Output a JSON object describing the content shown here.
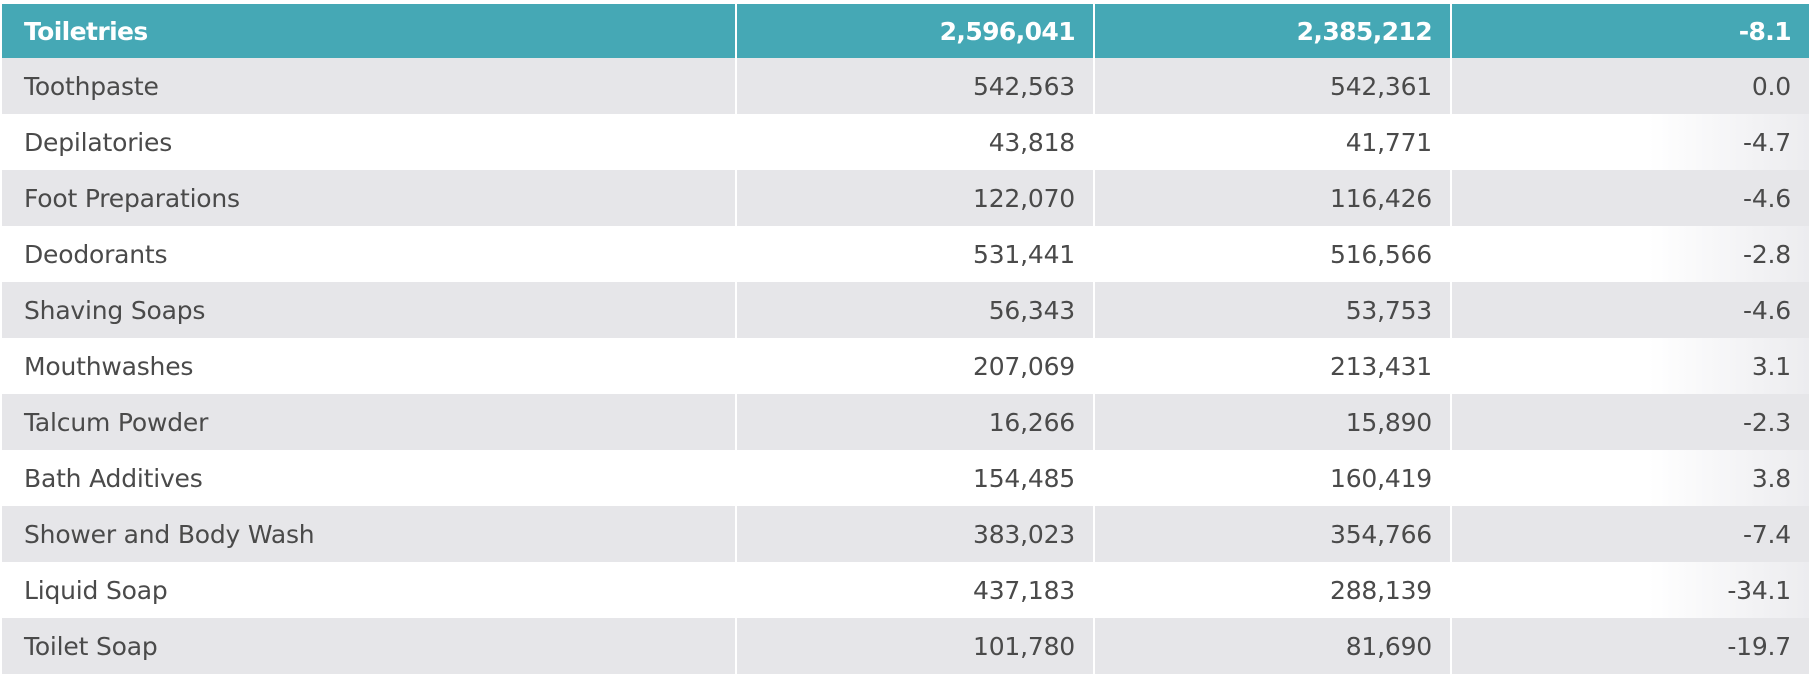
{
  "table": {
    "header": {
      "category": "Toiletries",
      "value_a": "2,596,041",
      "value_b": "2,385,212",
      "change": "-8.1"
    },
    "rows": [
      {
        "category": "Toothpaste",
        "value_a": "542,563",
        "value_b": "542,361",
        "change": "0.0"
      },
      {
        "category": "Depilatories",
        "value_a": "43,818",
        "value_b": "41,771",
        "change": "-4.7"
      },
      {
        "category": "Foot Preparations",
        "value_a": "122,070",
        "value_b": "116,426",
        "change": "-4.6"
      },
      {
        "category": "Deodorants",
        "value_a": "531,441",
        "value_b": "516,566",
        "change": "-2.8"
      },
      {
        "category": "Shaving Soaps",
        "value_a": "56,343",
        "value_b": "53,753",
        "change": "-4.6"
      },
      {
        "category": "Mouthwashes",
        "value_a": "207,069",
        "value_b": "213,431",
        "change": "3.1"
      },
      {
        "category": "Talcum Powder",
        "value_a": "16,266",
        "value_b": "15,890",
        "change": "-2.3"
      },
      {
        "category": "Bath Additives",
        "value_a": "154,485",
        "value_b": "160,419",
        "change": "3.8"
      },
      {
        "category": "Shower and Body Wash",
        "value_a": "383,023",
        "value_b": "354,766",
        "change": "-7.4"
      },
      {
        "category": "Liquid Soap",
        "value_a": "437,183",
        "value_b": "288,139",
        "change": "-34.1"
      },
      {
        "category": "Toilet Soap",
        "value_a": "101,780",
        "value_b": "81,690",
        "change": "-19.7"
      }
    ]
  },
  "colors": {
    "header_bg": "#45a8b5",
    "shaded_row_bg": "#e6e6e9",
    "text": "#4a4a4a"
  }
}
